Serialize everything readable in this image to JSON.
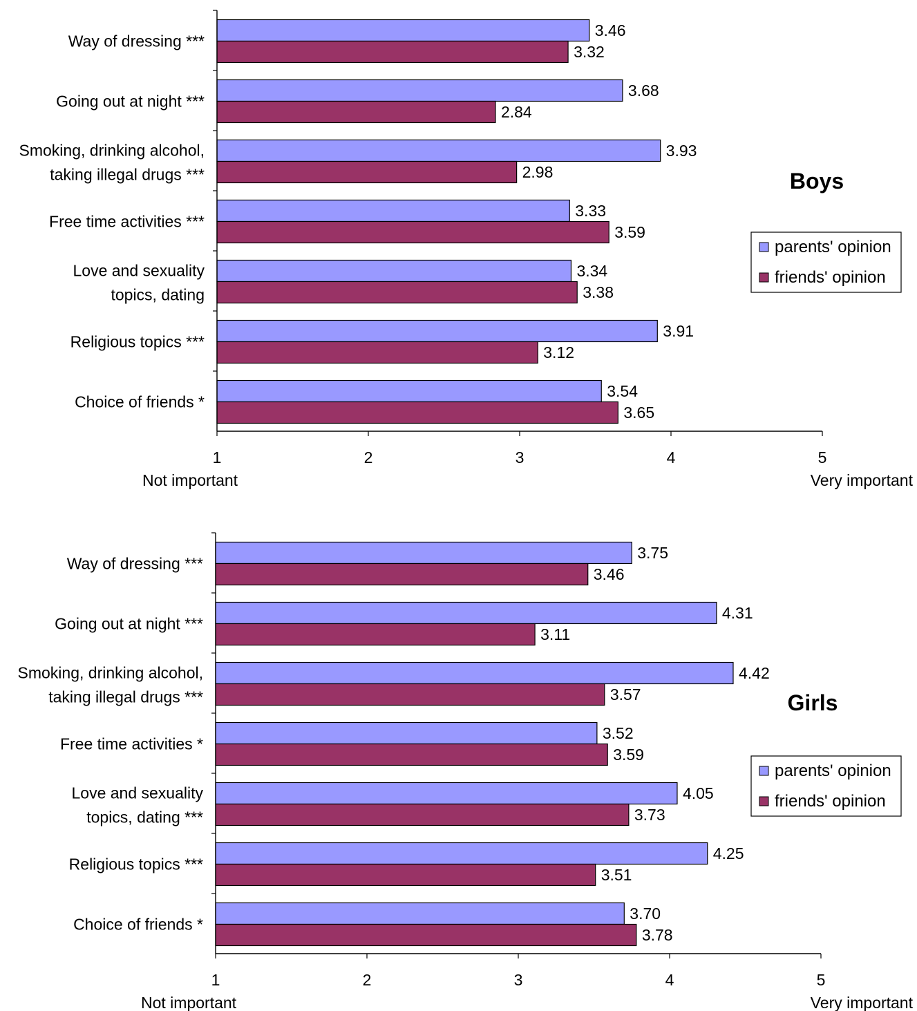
{
  "chart_data": [
    {
      "type": "bar",
      "orientation": "horizontal",
      "title": "Boys",
      "categories": [
        [
          "Way of dressing ***"
        ],
        [
          "Going out at night ***"
        ],
        [
          "Smoking, drinking alcohol,",
          "taking illegal drugs ***"
        ],
        [
          "Free time activities ***"
        ],
        [
          "Love and sexuality",
          "topics, dating"
        ],
        [
          "Religious topics ***"
        ],
        [
          "Choice of friends *"
        ]
      ],
      "series": [
        {
          "name": "parents' opinion",
          "color": "#9999ff",
          "values": [
            3.46,
            3.68,
            3.93,
            3.33,
            3.34,
            3.91,
            3.54
          ],
          "labels": [
            "3.46",
            "3.68",
            "3.93",
            "3.33",
            "3.34",
            "3.91",
            "3.54"
          ]
        },
        {
          "name": "friends' opinion",
          "color": "#993366",
          "values": [
            3.32,
            2.84,
            2.98,
            3.59,
            3.38,
            3.12,
            3.65
          ],
          "labels": [
            "3.32",
            "2.84",
            "2.98",
            "3.59",
            "3.38",
            "3.12",
            "3.65"
          ]
        }
      ],
      "xlim": [
        1,
        5
      ],
      "xticks": [
        "1",
        "2",
        "3",
        "4",
        "5"
      ],
      "xlabel_left": "Not important",
      "xlabel_right": "Very important",
      "legend_position": "right",
      "grid": false
    },
    {
      "type": "bar",
      "orientation": "horizontal",
      "title": "Girls",
      "categories": [
        [
          "Way of dressing ***"
        ],
        [
          "Going out at night ***"
        ],
        [
          "Smoking, drinking alcohol,",
          "taking illegal drugs ***"
        ],
        [
          "Free time activities *"
        ],
        [
          "Love and sexuality",
          "topics, dating ***"
        ],
        [
          "Religious topics ***"
        ],
        [
          "Choice of friends *"
        ]
      ],
      "series": [
        {
          "name": "parents' opinion",
          "color": "#9999ff",
          "values": [
            3.75,
            4.31,
            4.42,
            3.52,
            4.05,
            4.25,
            3.7
          ],
          "labels": [
            "3.75",
            "4.31",
            "4.42",
            "3.52",
            "4.05",
            "4.25",
            "3.70"
          ]
        },
        {
          "name": "friends' opinion",
          "color": "#993366",
          "values": [
            3.46,
            3.11,
            3.57,
            3.59,
            3.73,
            3.51,
            3.78
          ],
          "labels": [
            "3.46",
            "3.11",
            "3.57",
            "3.59",
            "3.73",
            "3.51",
            "3.78"
          ]
        }
      ],
      "xlim": [
        1,
        5
      ],
      "xticks": [
        "1",
        "2",
        "3",
        "4",
        "5"
      ],
      "xlabel_left": "Not important",
      "xlabel_right": "Very important",
      "legend_position": "right",
      "grid": false
    }
  ]
}
